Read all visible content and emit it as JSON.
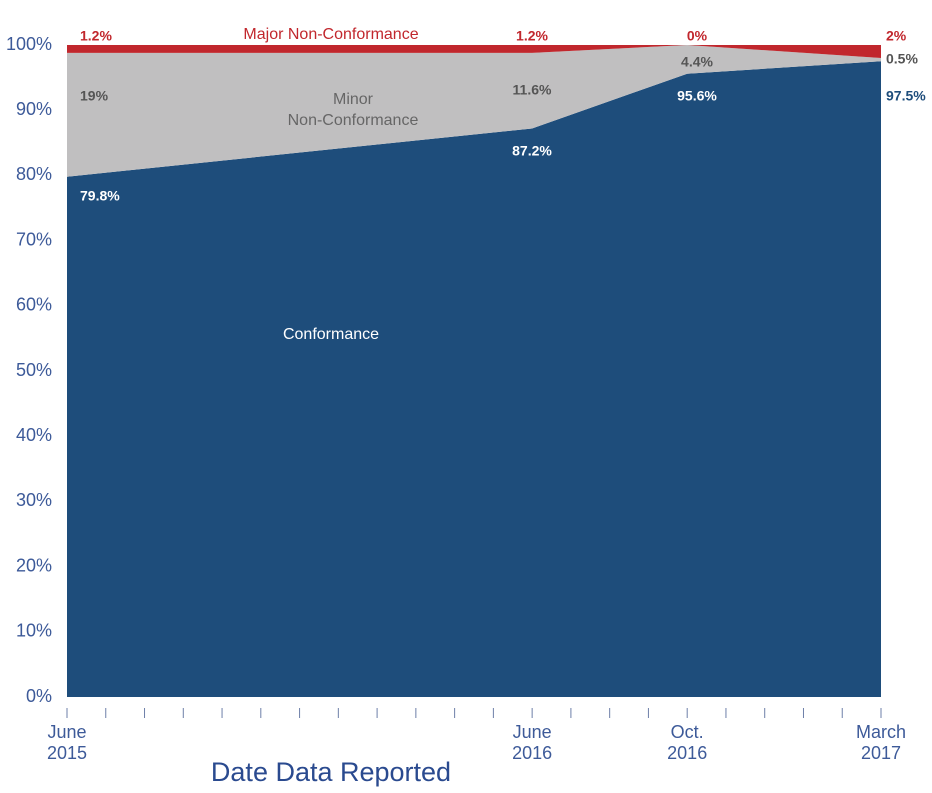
{
  "chart_data": {
    "type": "stacked_area",
    "xlabel": "Date Data Reported",
    "x": [
      "2015-06",
      "2016-06",
      "2016-10",
      "2017-03"
    ],
    "xlim": [
      "2015-06",
      "2017-03"
    ],
    "xticks": [
      {
        "value": "2015-06",
        "label": "June 2015"
      },
      "2015-07",
      "2015-08",
      "2015-09",
      "2015-10",
      "2015-11",
      "2015-12",
      "2016-01",
      "2016-02",
      "2016-03",
      "2016-04",
      "2016-05",
      {
        "value": "2016-06",
        "label": "June 2016"
      },
      "2016-07",
      "2016-08",
      "2016-09",
      {
        "value": "2016-10",
        "label": "Oct. 2016"
      },
      "2016-11",
      "2016-12",
      "2017-01",
      "2017-02",
      {
        "value": "2017-03",
        "label": "March 2017"
      }
    ],
    "ylim": [
      0,
      100
    ],
    "yticks": [
      {
        "value": 0,
        "label": "0%"
      },
      {
        "value": 10,
        "label": "10%"
      },
      {
        "value": 20,
        "label": "20%"
      },
      {
        "value": 30,
        "label": "30%"
      },
      {
        "value": 40,
        "label": "40%"
      },
      {
        "value": 50,
        "label": "50%"
      },
      {
        "value": 60,
        "label": "60%"
      },
      {
        "value": 70,
        "label": "70%"
      },
      {
        "value": 80,
        "label": "80%"
      },
      {
        "value": 90,
        "label": "90%"
      },
      {
        "value": 100,
        "label": "100%"
      }
    ],
    "grid": false,
    "series": [
      {
        "name": "Conformance",
        "color": "#1e4d7b",
        "values": [
          79.8,
          87.2,
          95.6,
          97.5
        ],
        "value_labels": [
          "79.8%",
          "87.2%",
          "95.6%",
          "97.5%"
        ]
      },
      {
        "name": "Minor Non-Conformance",
        "color": "#c0bfc0",
        "values": [
          19,
          11.6,
          4.4,
          0.5
        ],
        "value_labels": [
          "19%",
          "11.6%",
          "4.4%",
          "0.5%"
        ]
      },
      {
        "name": "Major Non-Conformance",
        "color": "#c1272d",
        "values": [
          1.2,
          1.2,
          0,
          2
        ],
        "value_labels": [
          "1.2%",
          "1.2%",
          "0%",
          "2%"
        ]
      }
    ]
  }
}
